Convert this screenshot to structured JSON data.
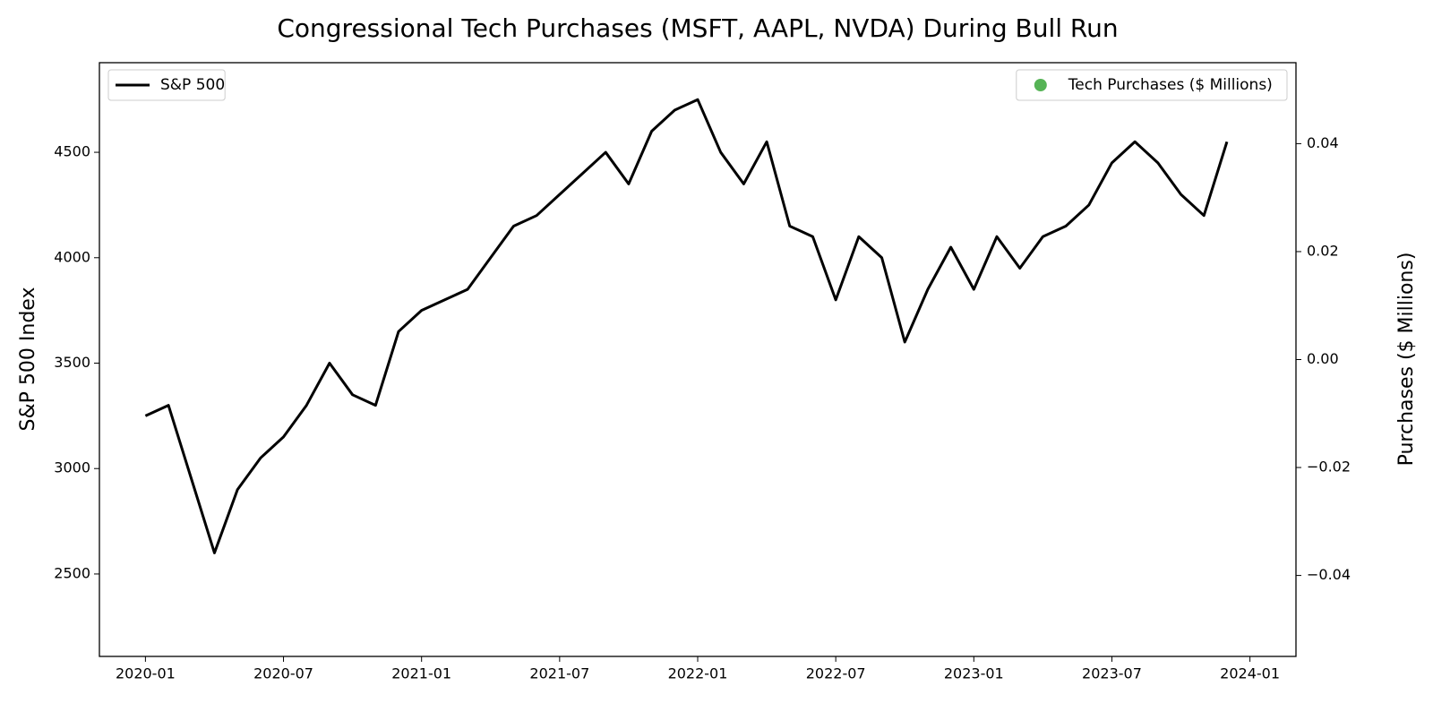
{
  "chart_data": {
    "type": "line",
    "title": "Congressional Tech Purchases (MSFT, AAPL, NVDA) During Bull Run",
    "y_label": "S&P 500 Index",
    "y2_label": "Purchases ($ Millions)",
    "y2_label_color": "#008000",
    "xlim": [
      "2019-11",
      "2024-03"
    ],
    "xticks": [
      "2020-01",
      "2020-07",
      "2021-01",
      "2021-07",
      "2022-01",
      "2022-07",
      "2023-01",
      "2023-07",
      "2024-01"
    ],
    "ylim": [
      2109,
      4925
    ],
    "yticks": [
      2500,
      3000,
      3500,
      4000,
      4500
    ],
    "y2lim": [
      -0.055,
      0.055
    ],
    "y2ticks": [
      {
        "value": -0.04,
        "label": "−0.04"
      },
      {
        "value": -0.02,
        "label": "−0.02"
      },
      {
        "value": 0,
        "label": "0.00"
      },
      {
        "value": 0.02,
        "label": "0.02"
      },
      {
        "value": 0.04,
        "label": "0.04"
      }
    ],
    "series": [
      {
        "name": "S&P 500",
        "type": "line",
        "color": "#000000",
        "legend_loc": "upper left",
        "x": [
          "2020-01",
          "2020-02",
          "2020-03",
          "2020-04",
          "2020-05",
          "2020-06",
          "2020-07",
          "2020-08",
          "2020-09",
          "2020-10",
          "2020-11",
          "2020-12",
          "2021-01",
          "2021-02",
          "2021-03",
          "2021-04",
          "2021-05",
          "2021-06",
          "2021-07",
          "2021-08",
          "2021-09",
          "2021-10",
          "2021-11",
          "2021-12",
          "2022-01",
          "2022-02",
          "2022-03",
          "2022-04",
          "2022-05",
          "2022-06",
          "2022-07",
          "2022-08",
          "2022-09",
          "2022-10",
          "2022-11",
          "2022-12",
          "2023-01",
          "2023-02",
          "2023-03",
          "2023-04",
          "2023-05",
          "2023-06",
          "2023-07",
          "2023-08",
          "2023-09",
          "2023-10",
          "2023-11",
          "2023-12"
        ],
        "values": [
          3250,
          3300,
          2950,
          2600,
          2900,
          3050,
          3150,
          3300,
          3500,
          3350,
          3300,
          3650,
          3750,
          3800,
          3850,
          4000,
          4150,
          4200,
          4300,
          4400,
          4500,
          4350,
          4600,
          4700,
          4750,
          4500,
          4350,
          4550,
          4150,
          4100,
          3800,
          4100,
          4000,
          3600,
          3850,
          4050,
          3850,
          4100,
          3950,
          4100,
          4150,
          4250,
          4450,
          4550,
          4450,
          4300,
          4200,
          4550
        ]
      },
      {
        "name": "Tech Purchases ($ Millions)",
        "type": "scatter",
        "color": "#2ca02c",
        "axis": "y2",
        "legend_loc": "upper right",
        "x": [],
        "values": []
      }
    ]
  }
}
